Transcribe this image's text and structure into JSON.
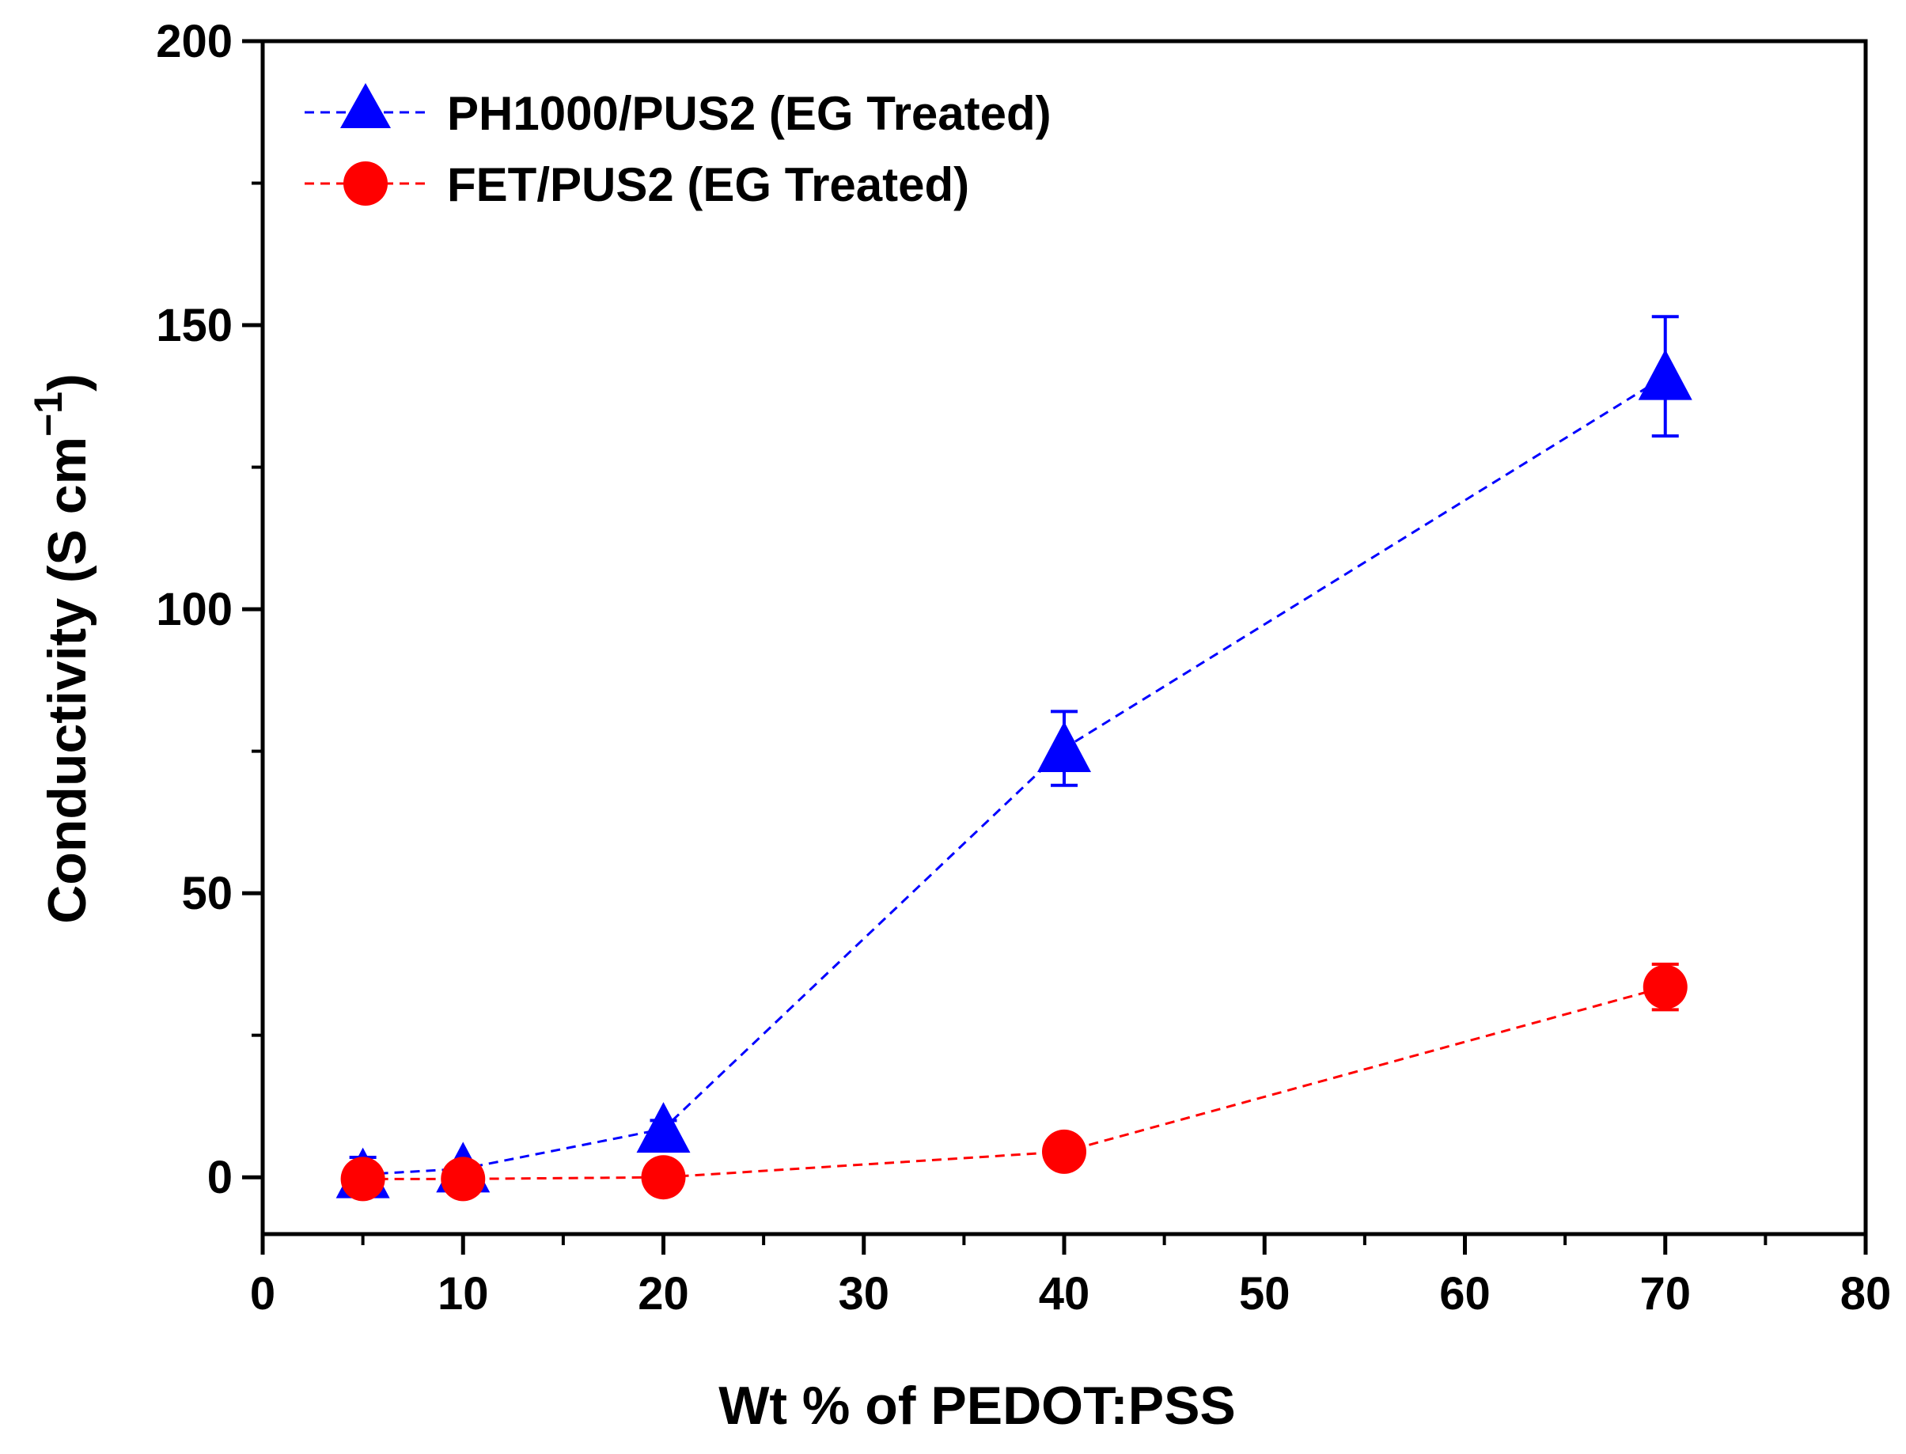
{
  "chart_data": {
    "type": "scatter",
    "xlabel": "Wt % of PEDOT:PSS",
    "ylabel": "Conductivity (S cm",
    "ylabel_superscript": "−1",
    "ylabel_close": ")",
    "xlim": [
      0,
      80
    ],
    "ylim": [
      -10,
      200
    ],
    "x_ticks": [
      "0",
      "10",
      "20",
      "30",
      "40",
      "50",
      "60",
      "70",
      "80"
    ],
    "x_tick_values": [
      0,
      10,
      20,
      30,
      40,
      50,
      60,
      70,
      80
    ],
    "y_ticks": [
      "0",
      "50",
      "100",
      "150",
      "200"
    ],
    "y_tick_values": [
      0,
      50,
      100,
      150,
      200
    ],
    "y_minor_tick_values": [
      25,
      75,
      125,
      175
    ],
    "x_minor_tick_values": [
      5,
      15,
      25,
      35,
      45,
      55,
      65,
      75
    ],
    "grid": false,
    "legend_position": "top-left",
    "series": [
      {
        "name": "PH1000/PUS2 (EG Treated)",
        "color": "#0000ff",
        "marker": "triangle",
        "line_style": "dashed",
        "x": [
          5,
          10,
          20,
          40,
          70
        ],
        "y": [
          0.5,
          1.5,
          8.5,
          75.5,
          141
        ],
        "error": [
          3,
          1,
          1.5,
          6.5,
          10.5
        ]
      },
      {
        "name": "FET/PUS2 (EG Treated)",
        "color": "#ff0000",
        "marker": "circle",
        "line_style": "dashed",
        "x": [
          5,
          10,
          20,
          40,
          70
        ],
        "y": [
          -0.3,
          -0.3,
          0,
          4.5,
          33.5
        ],
        "error": [
          0.3,
          0.3,
          0.5,
          1,
          4
        ]
      }
    ]
  }
}
